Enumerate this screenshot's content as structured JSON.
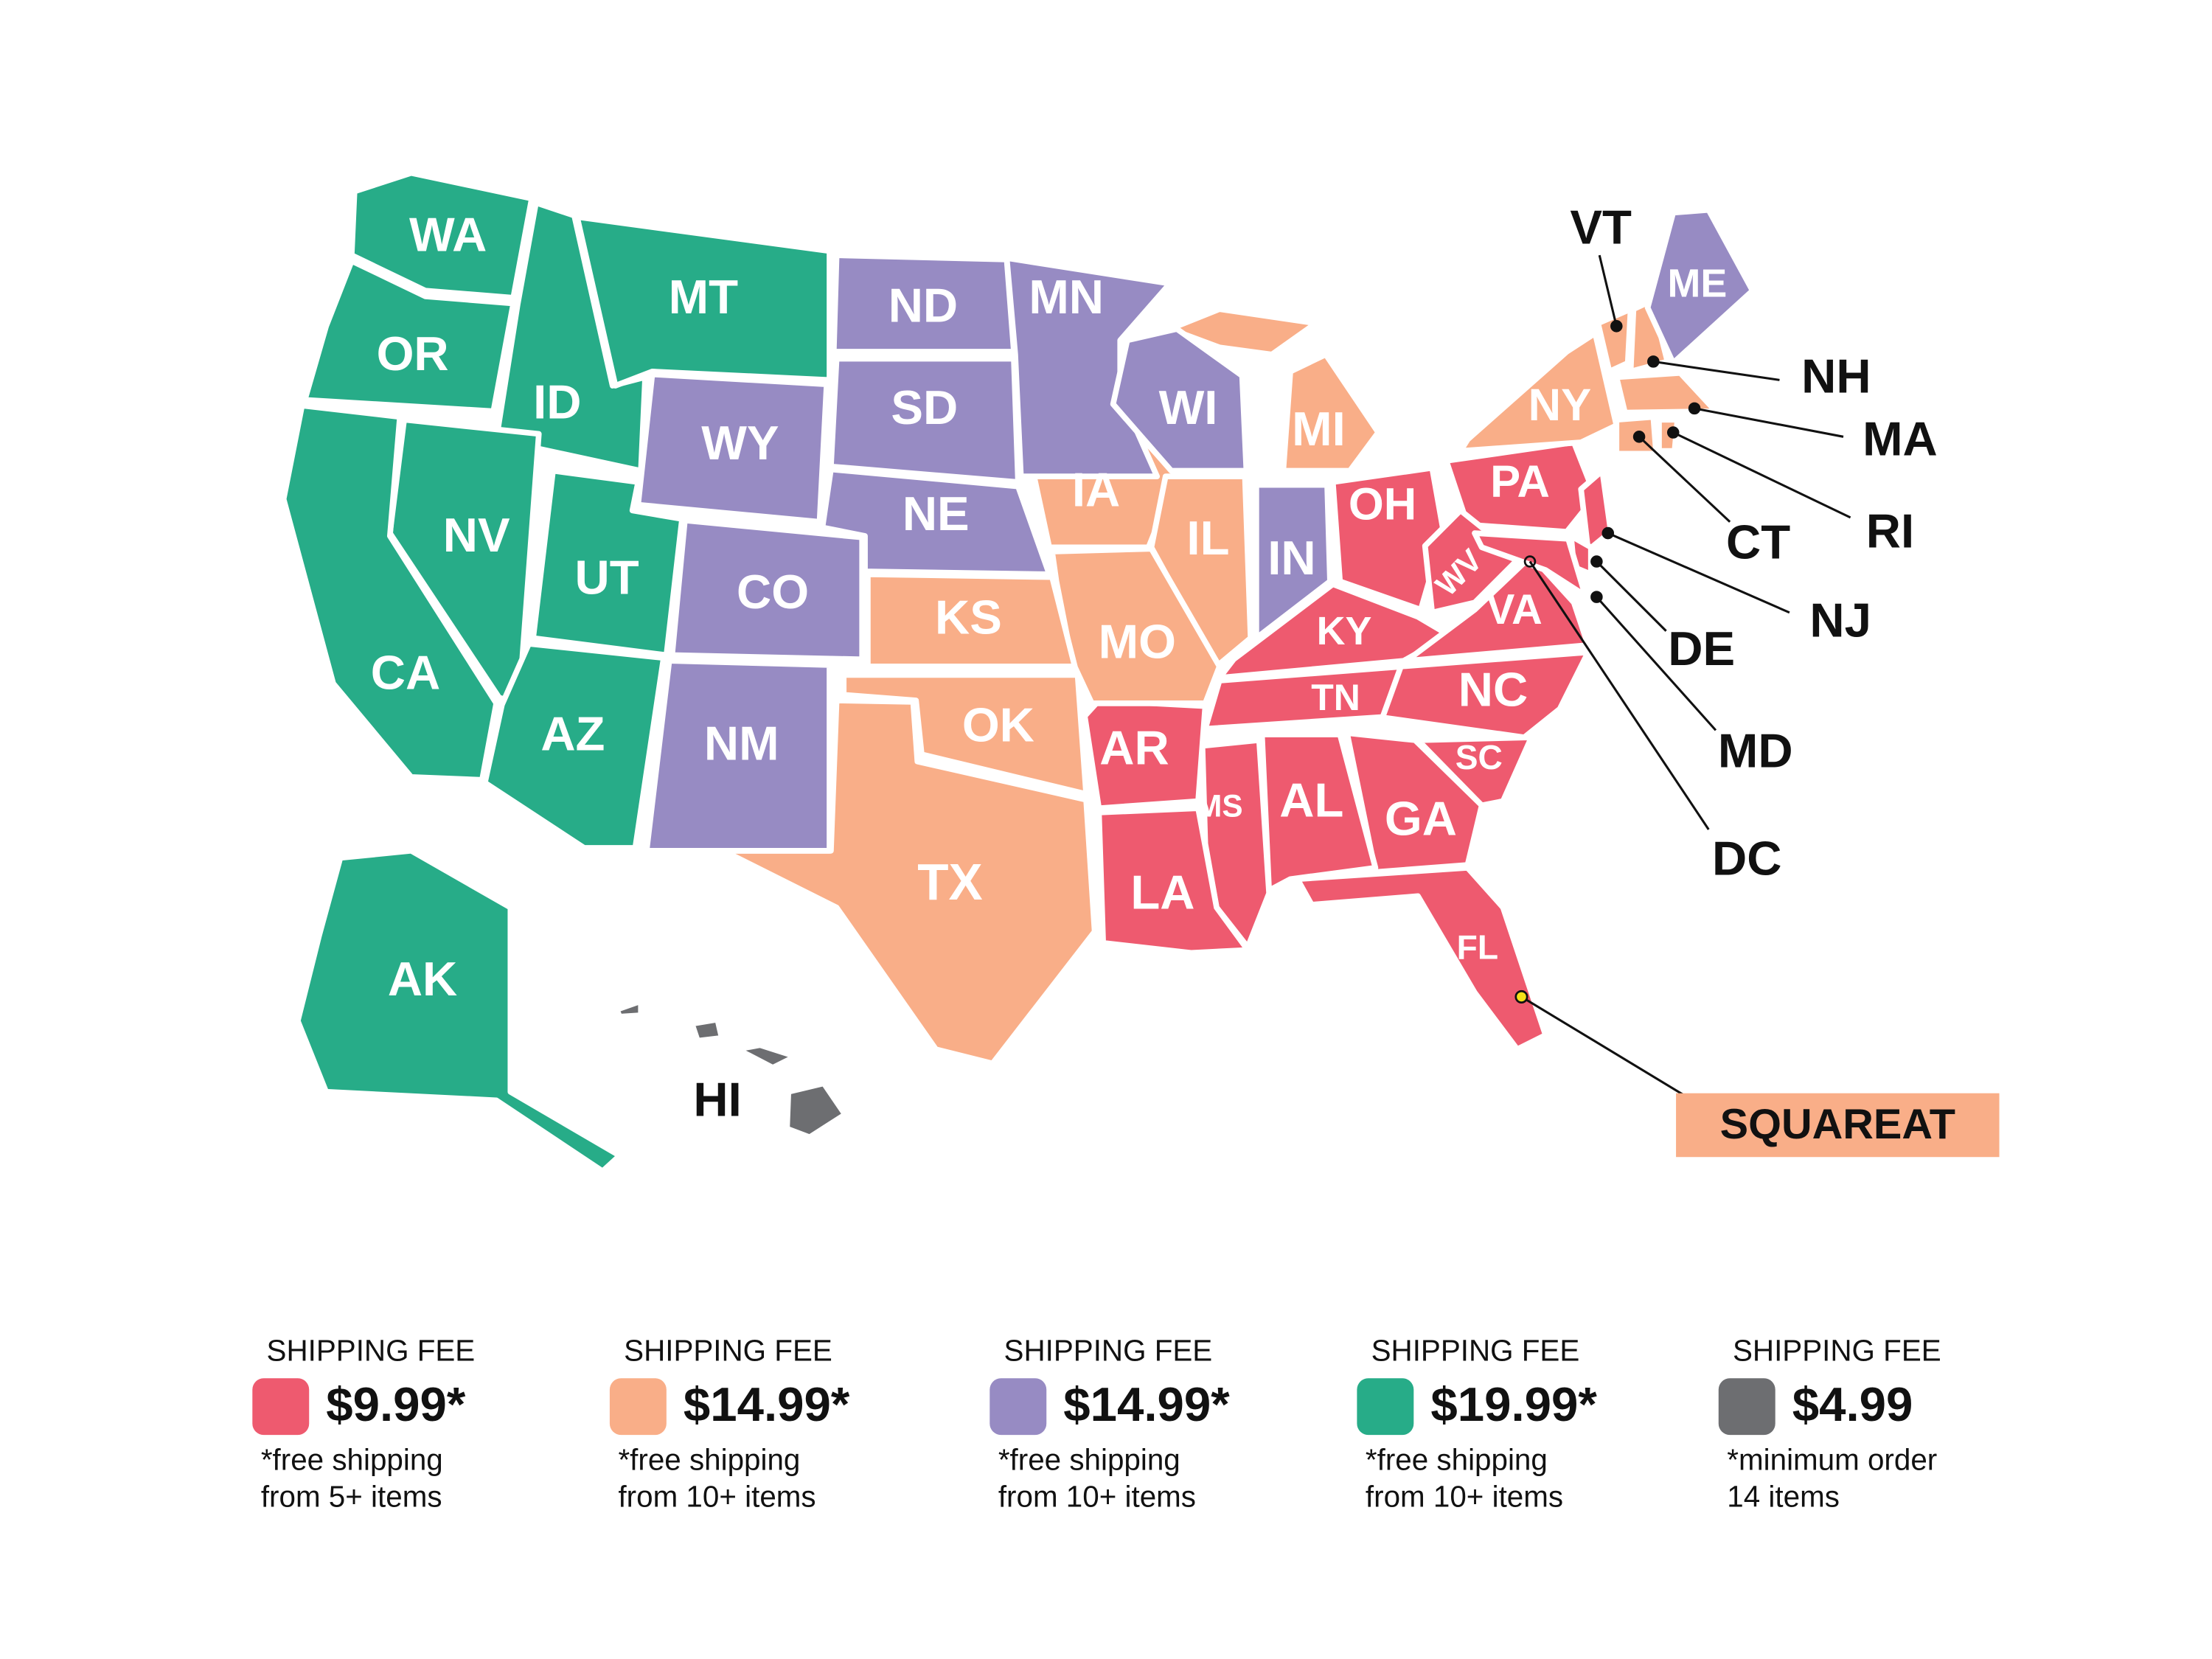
{
  "legend": [
    {
      "heading": "SHIPPING FEE",
      "price": "$9.99*",
      "note": [
        "*free shipping",
        "from 5+ items"
      ],
      "color": "#ee5a6f",
      "states": [
        "OH",
        "PA",
        "WV",
        "KY",
        "VA",
        "TN",
        "NC",
        "SC",
        "GA",
        "AL",
        "MS",
        "AR",
        "LA",
        "FL",
        "NJ",
        "DE",
        "MD",
        "DC"
      ]
    },
    {
      "heading": "SHIPPING FEE",
      "price": "$14.99*",
      "note": [
        "*free shipping",
        "from 10+ items"
      ],
      "color": "#f9ae88",
      "states": [
        "MI",
        "IA",
        "IL",
        "MO",
        "KS",
        "OK",
        "TX",
        "NY",
        "VT",
        "NH",
        "MA",
        "RI",
        "CT"
      ]
    },
    {
      "heading": "SHIPPING FEE",
      "price": "$14.99*",
      "note": [
        "*free shipping",
        "from 10+ items"
      ],
      "color": "#978bc3",
      "states": [
        "ND",
        "SD",
        "NE",
        "WY",
        "CO",
        "NM",
        "MN",
        "WI",
        "IN",
        "ME"
      ]
    },
    {
      "heading": "SHIPPING FEE",
      "price": "$19.99*",
      "note": [
        "*free shipping",
        "from 10+ items"
      ],
      "color": "#27ac88",
      "states": [
        "WA",
        "OR",
        "ID",
        "MT",
        "NV",
        "UT",
        "CA",
        "AZ",
        "AK"
      ]
    },
    {
      "heading": "SHIPPING FEE",
      "price": "$4.99",
      "note": [
        "*minimum order",
        "14 items"
      ],
      "color": "#6d6e71",
      "states": [
        "HI"
      ]
    }
  ],
  "store": "SQUAREAT"
}
